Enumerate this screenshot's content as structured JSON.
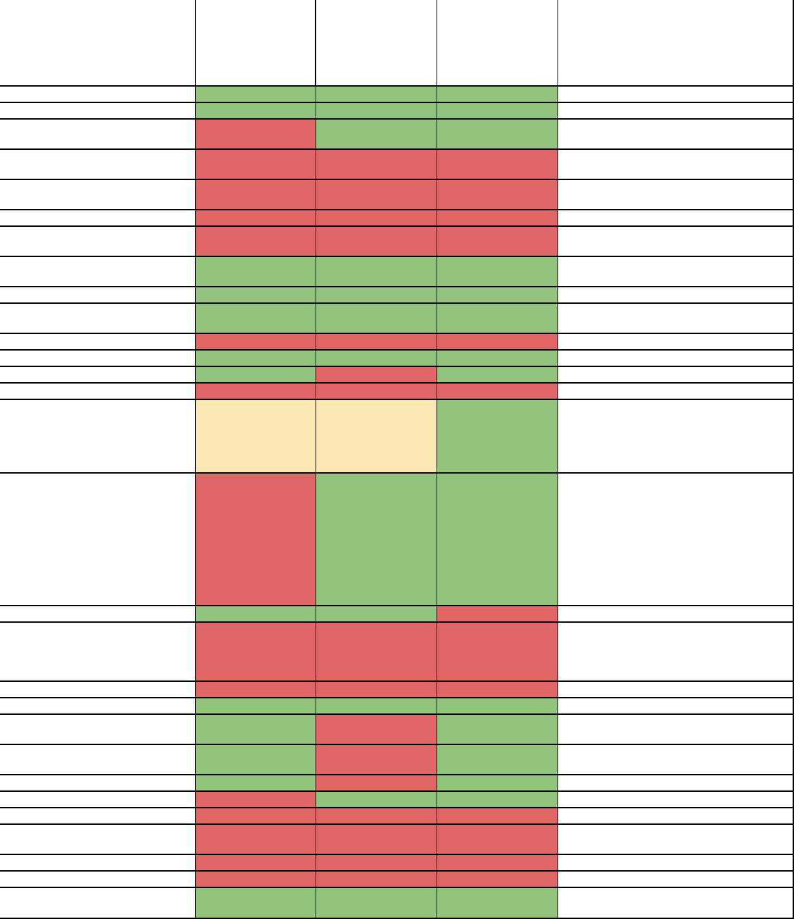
{
  "table": {
    "rows": [
      {
        "cells": [
          "#ffffff",
          "#ffffff",
          "#ffffff",
          "#ffffff",
          "#ffffff"
        ]
      },
      {
        "cells": [
          "#ffffff",
          "#93c47d",
          "#93c47d",
          "#93c47d",
          "#ffffff"
        ]
      },
      {
        "cells": [
          "#ffffff",
          "#93c47d",
          "#93c47d",
          "#93c47d",
          "#ffffff"
        ]
      },
      {
        "cells": [
          "#ffffff",
          "#e06666",
          "#93c47d",
          "#93c47d",
          "#ffffff"
        ]
      },
      {
        "cells": [
          "#ffffff",
          "#e06666",
          "#e06666",
          "#e06666",
          "#ffffff"
        ]
      },
      {
        "cells": [
          "#ffffff",
          "#e06666",
          "#e06666",
          "#e06666",
          "#ffffff"
        ]
      },
      {
        "cells": [
          "#ffffff",
          "#e06666",
          "#e06666",
          "#e06666",
          "#ffffff"
        ]
      },
      {
        "cells": [
          "#ffffff",
          "#e06666",
          "#e06666",
          "#e06666",
          "#ffffff"
        ]
      },
      {
        "cells": [
          "#ffffff",
          "#93c47d",
          "#93c47d",
          "#93c47d",
          "#ffffff"
        ]
      },
      {
        "cells": [
          "#ffffff",
          "#93c47d",
          "#93c47d",
          "#93c47d",
          "#ffffff"
        ]
      },
      {
        "cells": [
          "#ffffff",
          "#93c47d",
          "#93c47d",
          "#93c47d",
          "#ffffff"
        ]
      },
      {
        "cells": [
          "#ffffff",
          "#e06666",
          "#e06666",
          "#e06666",
          "#ffffff"
        ]
      },
      {
        "cells": [
          "#ffffff",
          "#93c47d",
          "#93c47d",
          "#93c47d",
          "#ffffff"
        ]
      },
      {
        "cells": [
          "#ffffff",
          "#93c47d",
          "#e06666",
          "#93c47d",
          "#ffffff"
        ]
      },
      {
        "cells": [
          "#ffffff",
          "#e06666",
          "#e06666",
          "#e06666",
          "#ffffff"
        ]
      },
      {
        "cells": [
          "#ffffff",
          "#fce8b2",
          "#fce8b2",
          "#93c47d",
          "#ffffff"
        ]
      },
      {
        "cells": [
          "#ffffff",
          "#e06666",
          "#93c47d",
          "#93c47d",
          "#ffffff"
        ]
      },
      {
        "cells": [
          "#ffffff",
          "#93c47d",
          "#93c47d",
          "#e06666",
          "#ffffff"
        ]
      },
      {
        "cells": [
          "#ffffff",
          "#e06666",
          "#e06666",
          "#e06666",
          "#ffffff"
        ]
      },
      {
        "cells": [
          "#ffffff",
          "#e06666",
          "#e06666",
          "#e06666",
          "#ffffff"
        ]
      },
      {
        "cells": [
          "#ffffff",
          "#93c47d",
          "#93c47d",
          "#93c47d",
          "#ffffff"
        ]
      },
      {
        "cells": [
          "#ffffff",
          "#93c47d",
          "#e06666",
          "#93c47d",
          "#ffffff"
        ]
      },
      {
        "cells": [
          "#ffffff",
          "#93c47d",
          "#e06666",
          "#93c47d",
          "#ffffff"
        ]
      },
      {
        "cells": [
          "#ffffff",
          "#93c47d",
          "#e06666",
          "#93c47d",
          "#ffffff"
        ]
      },
      {
        "cells": [
          "#ffffff",
          "#e06666",
          "#93c47d",
          "#93c47d",
          "#ffffff"
        ]
      },
      {
        "cells": [
          "#ffffff",
          "#e06666",
          "#e06666",
          "#e06666",
          "#ffffff"
        ]
      },
      {
        "cells": [
          "#ffffff",
          "#e06666",
          "#e06666",
          "#e06666",
          "#ffffff"
        ]
      },
      {
        "cells": [
          "#ffffff",
          "#e06666",
          "#e06666",
          "#e06666",
          "#ffffff"
        ]
      },
      {
        "cells": [
          "#ffffff",
          "#e06666",
          "#e06666",
          "#e06666",
          "#ffffff"
        ]
      },
      {
        "cells": [
          "#ffffff",
          "#93c47d",
          "#93c47d",
          "#93c47d",
          "#ffffff"
        ]
      }
    ]
  }
}
